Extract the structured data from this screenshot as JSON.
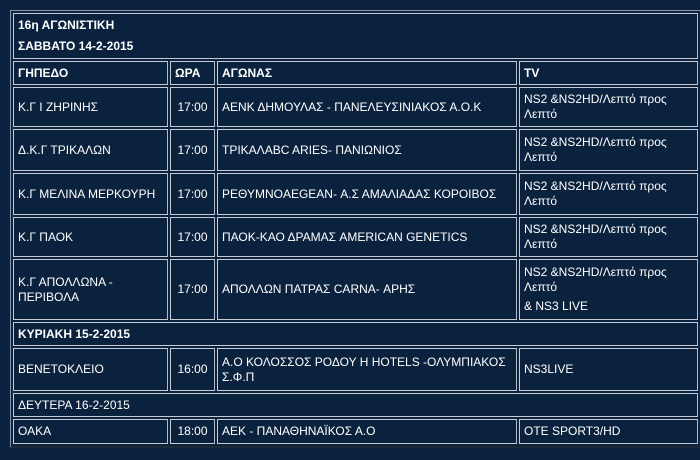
{
  "round_title": "16η ΑΓΩΝΙΣΤΙΚΗ",
  "headers": {
    "venue": "ΓΗΠΕΔΟ",
    "time": "ΩΡΑ",
    "match": "ΑΓΩΝΑΣ",
    "tv": "TV"
  },
  "days": [
    {
      "label": "ΣΑΒΒΑΤΟ  14-2-2015",
      "matches": [
        {
          "venue": "Κ.Γ Ι ΖΗΡΙΝΗΣ",
          "time": "17:00",
          "match": "ΑΕΝΚ ΔΗΜΟΥΛΑΣ - ΠΑΝΕΛΕΥΣΙΝΙΑΚΟΣ Α.Ο.Κ",
          "tv": "NS2 &NS2HD/Λεπτό προς Λεπτό",
          "tv_extra": ""
        },
        {
          "venue": "Δ.Κ.Γ ΤΡΙΚΑΛΩΝ",
          "time": "17:00",
          "match": "ΤΡΙΚΑΛΑBC ARIES- ΠΑΝΙΩΝΙΟΣ",
          "tv": "NS2 &NS2HD/Λεπτό προς Λεπτό",
          "tv_extra": ""
        },
        {
          "venue": "Κ.Γ ΜΕΛΙΝΑ ΜΕΡΚΟΥΡΗ",
          "time": "17:00",
          "match": "ΡΕΘΥΜΝΟAEGEAN- Α.Σ ΑΜΑΛΙΑΔΑΣ ΚΟΡΟΙΒΟΣ",
          "tv": "NS2 &NS2HD/Λεπτό προς Λεπτό",
          "tv_extra": ""
        },
        {
          "venue": "Κ.Γ ΠΑΟΚ",
          "time": "17:00",
          "match": "ΠΑΟΚ-ΚΑΟ ΔΡΑΜΑΣ AMERICAN GENETICS",
          "tv": "NS2 &NS2HD/Λεπτό προς Λεπτό",
          "tv_extra": ""
        },
        {
          "venue": "Κ.Γ ΑΠΟΛΛΩΝΑ - ΠΕΡΙΒΟΛΑ",
          "time": "17:00",
          "match": "ΑΠΟΛΛΩΝ ΠΑΤΡΑΣ CARNA- ΑΡΗΣ",
          "tv": "NS2 &NS2HD/Λεπτό προς Λεπτό",
          "tv_extra": "& NS3 LIVE"
        }
      ]
    },
    {
      "label": "ΚΥΡΙΑΚΗ  15-2-2015",
      "matches": [
        {
          "venue": "ΒΕΝΕΤΟΚΛΕΙΟ",
          "time": "16:00",
          "match": "Α.Ο ΚΟΛΟΣΣΟΣ ΡΟΔΟΥ H HOTELS -ΟΛΥΜΠΙΑΚΟΣ Σ.Φ.Π",
          "tv": "NS3LIVE",
          "tv_extra": ""
        }
      ]
    },
    {
      "label": "ΔΕΥΤΕΡΑ 16-2-2015",
      "matches": [
        {
          "venue": "ΟΑΚΑ",
          "time": "18:00",
          "match": "ΑΕΚ - ΠΑΝΑΘΗΝΑΪΚΟΣ Α.Ο",
          "tv": "OTE SPORT3/HD",
          "tv_extra": ""
        }
      ]
    }
  ]
}
